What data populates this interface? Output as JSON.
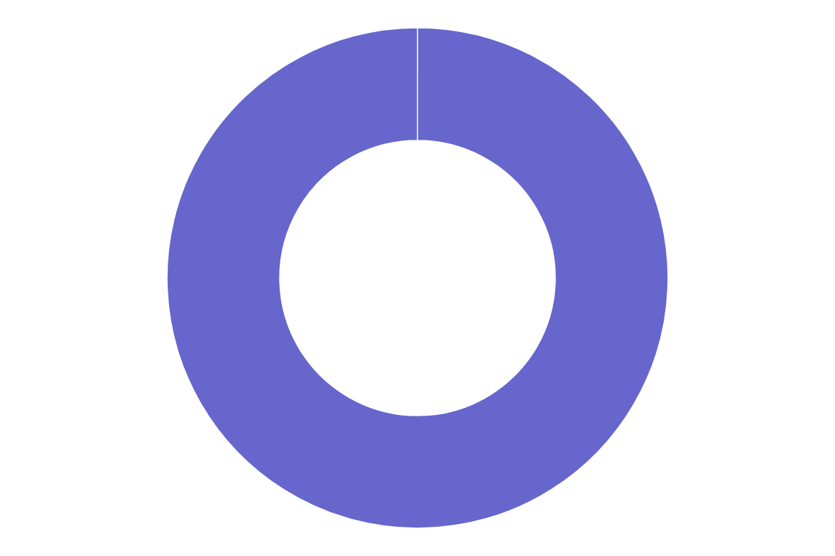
{
  "chart_data": {
    "type": "donut",
    "values": [
      0.001,
      0.001,
      0.001,
      99.997
    ],
    "colors": [
      "#3cb84a",
      "#ff9900",
      "#e8272b",
      "#6666cc"
    ]
  }
}
